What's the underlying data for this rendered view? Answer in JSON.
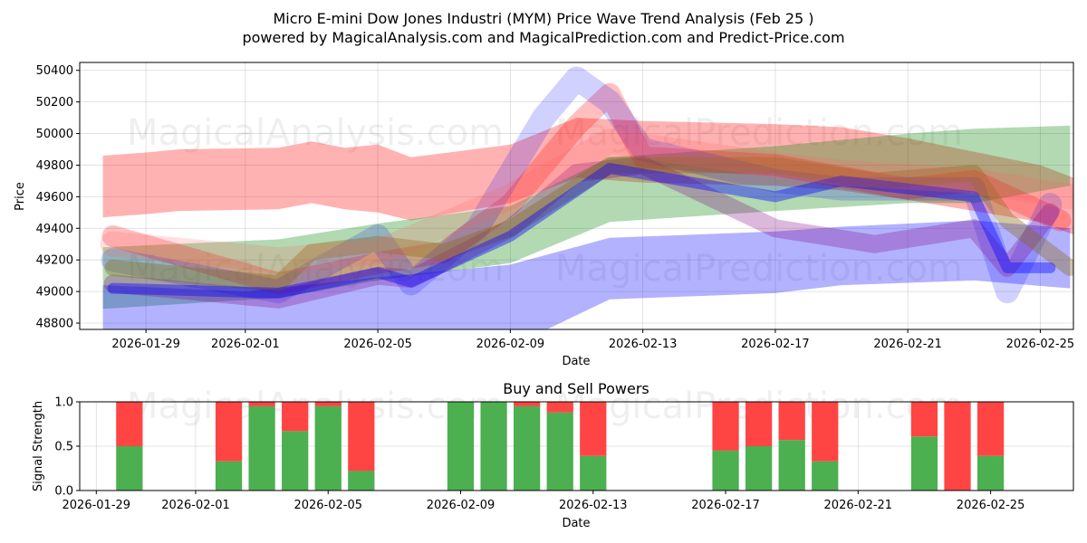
{
  "figure": {
    "title_line1": "Micro E-mini Dow Jones Industri (MYM) Price Wave Trend Analysis (Feb 25 )",
    "title_line2": "powered by MagicalAnalysis.com and MagicalPrediction.com and Predict-Price.com",
    "watermarks": [
      "MagicalAnalysis.com",
      "MagicalPrediction.com"
    ]
  },
  "chart_data": [
    {
      "type": "area",
      "name": "price-wave",
      "title": "",
      "xlabel": "Date",
      "ylabel": "Price",
      "x_domain": [
        "2026-01-27",
        "2026-02-26"
      ],
      "ylim": [
        48760,
        50450
      ],
      "y_ticks": [
        48800,
        49000,
        49200,
        49400,
        49600,
        49800,
        50000,
        50200,
        50400
      ],
      "x_ticks": [
        "2026-01-29",
        "2026-02-01",
        "2026-02-05",
        "2026-02-09",
        "2026-02-13",
        "2026-02-17",
        "2026-02-21",
        "2026-02-25"
      ],
      "grid": true,
      "bands": [
        {
          "name": "red-upper-band",
          "color": "#ff0000",
          "alpha": 0.3,
          "x": [
            "2026-01-27.7",
            "2026-01-29",
            "2026-01-30",
            "2026-02-02",
            "2026-02-03",
            "2026-02-04",
            "2026-02-05",
            "2026-02-06",
            "2026-02-09",
            "2026-02-11",
            "2026-02-13",
            "2026-02-17",
            "2026-02-19",
            "2026-02-21",
            "2026-02-25",
            "2026-02-26"
          ],
          "upper": [
            49860,
            49880,
            49900,
            49910,
            49950,
            49910,
            49930,
            49850,
            49930,
            50100,
            50080,
            50060,
            50040,
            49970,
            49800,
            49720
          ],
          "lower": [
            49470,
            49490,
            49510,
            49520,
            49560,
            49520,
            49500,
            49450,
            49560,
            49720,
            49690,
            49670,
            49640,
            49580,
            49440,
            49360
          ]
        },
        {
          "name": "green-band",
          "color": "#008000",
          "alpha": 0.3,
          "x": [
            "2026-01-27.7",
            "2026-02-02",
            "2026-02-05",
            "2026-02-09",
            "2026-02-12",
            "2026-02-17",
            "2026-02-21",
            "2026-02-23",
            "2026-02-25.9"
          ],
          "upper": [
            49280,
            49330,
            49430,
            49540,
            49850,
            49920,
            50000,
            50030,
            50050
          ],
          "lower": [
            48890,
            48960,
            49070,
            49180,
            49440,
            49510,
            49560,
            49560,
            49670
          ]
        },
        {
          "name": "blue-lower-band",
          "color": "#0000ff",
          "alpha": 0.3,
          "x": [
            "2026-01-27.7",
            "2026-02-01",
            "2026-02-05",
            "2026-02-09",
            "2026-02-12",
            "2026-02-17",
            "2026-02-19",
            "2026-02-23",
            "2026-02-25.9"
          ],
          "upper": [
            49040,
            49000,
            49090,
            49170,
            49340,
            49380,
            49410,
            49450,
            49400
          ],
          "lower": [
            48650,
            48600,
            48640,
            48650,
            48950,
            48990,
            49040,
            49070,
            49020
          ]
        }
      ],
      "wave_lines": [
        {
          "color": "#ff0000",
          "alpha": 0.25,
          "width": 24,
          "x": [
            "2026-01-28",
            "2026-02-02",
            "2026-02-05",
            "2026-02-07",
            "2026-02-09",
            "2026-02-11",
            "2026-02-12",
            "2026-02-13",
            "2026-02-17",
            "2026-02-21",
            "2026-02-23",
            "2026-02-25.6"
          ],
          "y": [
            49350,
            49050,
            49180,
            49250,
            49550,
            50050,
            50250,
            49850,
            49800,
            49650,
            49700,
            49450
          ]
        },
        {
          "color": "#0000ff",
          "alpha": 0.18,
          "width": 26,
          "x": [
            "2026-01-28",
            "2026-02-02",
            "2026-02-05",
            "2026-02-06",
            "2026-02-08",
            "2026-02-10",
            "2026-02-11",
            "2026-02-12",
            "2026-02-13",
            "2026-02-17",
            "2026-02-19",
            "2026-02-23",
            "2026-02-24",
            "2026-02-25.3"
          ],
          "y": [
            49200,
            49000,
            49350,
            49050,
            49400,
            50100,
            50350,
            50200,
            49900,
            49700,
            49650,
            49650,
            49000,
            49550
          ]
        },
        {
          "color": "#800080",
          "alpha": 0.28,
          "width": 20,
          "x": [
            "2026-01-28",
            "2026-02-02",
            "2026-02-05",
            "2026-02-06",
            "2026-02-09",
            "2026-02-11",
            "2026-02-13",
            "2026-02-17",
            "2026-02-20",
            "2026-02-23",
            "2026-02-24",
            "2026-02-25.3"
          ],
          "y": [
            49050,
            48950,
            49100,
            49080,
            49400,
            49750,
            49800,
            49400,
            49300,
            49400,
            49150,
            49500
          ]
        },
        {
          "color": "#8b6914",
          "alpha": 0.38,
          "width": 18,
          "x": [
            "2026-01-28",
            "2026-02-02",
            "2026-02-03",
            "2026-02-05",
            "2026-02-07",
            "2026-02-09",
            "2026-02-12",
            "2026-02-17",
            "2026-02-20",
            "2026-02-23",
            "2026-02-24",
            "2026-02-25.9"
          ],
          "y": [
            49150,
            49050,
            49250,
            49300,
            49250,
            49400,
            49800,
            49800,
            49700,
            49750,
            49450,
            49150
          ]
        },
        {
          "color": "#0000ff",
          "alpha": 0.4,
          "width": 12,
          "x": [
            "2026-01-28",
            "2026-02-02",
            "2026-02-05",
            "2026-02-06",
            "2026-02-09",
            "2026-02-12",
            "2026-02-17",
            "2026-02-19",
            "2026-02-23",
            "2026-02-24",
            "2026-02-25.3"
          ],
          "y": [
            49020,
            48990,
            49120,
            49060,
            49350,
            49780,
            49600,
            49700,
            49600,
            49150,
            49150
          ]
        },
        {
          "color": "#ff6060",
          "alpha": 0.2,
          "width": 28,
          "x": [
            "2026-01-28",
            "2026-02-02",
            "2026-02-05",
            "2026-02-09",
            "2026-02-12",
            "2026-02-17",
            "2026-02-19",
            "2026-02-23",
            "2026-02-25.9"
          ],
          "y": [
            49300,
            49200,
            49250,
            49600,
            49950,
            49800,
            49750,
            49700,
            49600
          ]
        }
      ]
    },
    {
      "type": "bar",
      "name": "buy-sell-powers",
      "stacked": true,
      "title": "Buy and Sell Powers",
      "xlabel": "Date",
      "ylabel": "Signal Strength",
      "ylim": [
        0,
        1
      ],
      "y_ticks": [
        0.0,
        0.5,
        1.0
      ],
      "y_tick_labels": [
        "0.0",
        "0.5",
        "1.0"
      ],
      "x_domain": [
        "2026-01-28.5",
        "2026-02-27.5"
      ],
      "x_ticks": [
        "2026-01-29",
        "2026-02-01",
        "2026-02-05",
        "2026-02-09",
        "2026-02-13",
        "2026-02-17",
        "2026-02-21",
        "2026-02-25"
      ],
      "grid": true,
      "colors": {
        "buy": "#4caf50",
        "sell": "#ff4444"
      },
      "series": [
        {
          "name": "buy",
          "dates": [
            "2026-01-30",
            "2026-02-02",
            "2026-02-03",
            "2026-02-04",
            "2026-02-05",
            "2026-02-06",
            "2026-02-09",
            "2026-02-10",
            "2026-02-11",
            "2026-02-12",
            "2026-02-13",
            "2026-02-17",
            "2026-02-18",
            "2026-02-19",
            "2026-02-20",
            "2026-02-23",
            "2026-02-24",
            "2026-02-25"
          ],
          "values": [
            0.5,
            0.33,
            0.95,
            0.67,
            0.95,
            0.22,
            1.0,
            1.0,
            0.95,
            0.88,
            0.39,
            0.45,
            0.5,
            0.57,
            0.33,
            0.61,
            0.0,
            0.39
          ]
        },
        {
          "name": "sell",
          "dates": [
            "2026-01-30",
            "2026-02-02",
            "2026-02-03",
            "2026-02-04",
            "2026-02-05",
            "2026-02-06",
            "2026-02-09",
            "2026-02-10",
            "2026-02-11",
            "2026-02-12",
            "2026-02-13",
            "2026-02-17",
            "2026-02-18",
            "2026-02-19",
            "2026-02-20",
            "2026-02-23",
            "2026-02-24",
            "2026-02-25"
          ],
          "values": [
            0.5,
            0.67,
            0.05,
            0.33,
            0.05,
            0.78,
            0.0,
            0.0,
            0.05,
            0.12,
            0.61,
            0.55,
            0.5,
            0.43,
            0.67,
            0.39,
            1.0,
            0.61
          ]
        }
      ]
    }
  ]
}
